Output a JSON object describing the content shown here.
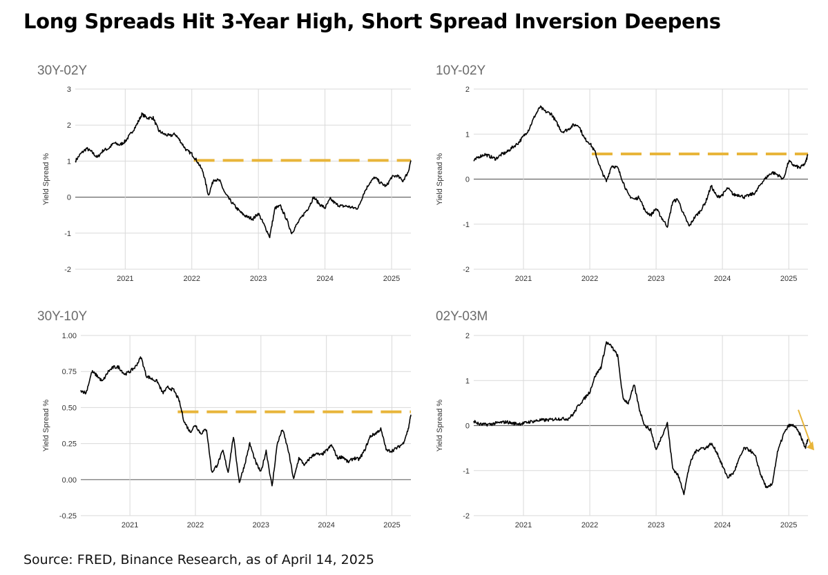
{
  "title": "Long Spreads Hit 3-Year High, Short Spread Inversion Deepens",
  "source": "Source: FRED, Binance Research, as of April 14, 2025",
  "colors": {
    "line": "#000000",
    "highlight": "#E8B53A",
    "grid": "#d9d9d9",
    "zero": "#666666"
  },
  "chart_data": [
    {
      "id": "30y-02y",
      "type": "line",
      "title": "30Y-02Y",
      "ylabel": "Yield Spread %",
      "xlabel": "",
      "ylim": [
        -2,
        3
      ],
      "yticks": [
        "3",
        "2",
        "1",
        "0",
        "-1",
        "-2"
      ],
      "ytick_values": [
        3,
        2,
        1,
        0,
        -1,
        -2
      ],
      "xlim": [
        2020.25,
        2025.29
      ],
      "xticks": [
        "2021",
        "2022",
        "2023",
        "2024",
        "2025"
      ],
      "xtick_values": [
        2021,
        2022,
        2023,
        2024,
        2025
      ],
      "grid": true,
      "reference_line": {
        "value": 1.02,
        "from": 2022.03,
        "to": 2025.29,
        "style": "dashed"
      },
      "x": [
        2020.25,
        2020.33,
        2020.42,
        2020.5,
        2020.58,
        2020.67,
        2020.75,
        2020.83,
        2020.92,
        2021.0,
        2021.08,
        2021.17,
        2021.25,
        2021.33,
        2021.42,
        2021.5,
        2021.58,
        2021.67,
        2021.75,
        2021.83,
        2021.92,
        2022.0,
        2022.08,
        2022.17,
        2022.25,
        2022.33,
        2022.42,
        2022.5,
        2022.58,
        2022.67,
        2022.75,
        2022.83,
        2022.92,
        2023.0,
        2023.08,
        2023.17,
        2023.25,
        2023.33,
        2023.42,
        2023.5,
        2023.58,
        2023.67,
        2023.75,
        2023.83,
        2023.92,
        2024.0,
        2024.08,
        2024.17,
        2024.25,
        2024.33,
        2024.42,
        2024.5,
        2024.58,
        2024.67,
        2024.75,
        2024.83,
        2024.92,
        2025.0,
        2025.08,
        2025.17,
        2025.25,
        2025.29
      ],
      "values": [
        1.0,
        1.2,
        1.35,
        1.25,
        1.1,
        1.3,
        1.35,
        1.5,
        1.45,
        1.55,
        1.75,
        2.0,
        2.3,
        2.2,
        2.2,
        1.85,
        1.75,
        1.7,
        1.75,
        1.55,
        1.3,
        1.2,
        1.0,
        0.7,
        0.05,
        0.5,
        0.45,
        0.1,
        -0.1,
        -0.3,
        -0.45,
        -0.55,
        -0.6,
        -0.45,
        -0.75,
        -1.1,
        -0.3,
        -0.25,
        -0.6,
        -1.0,
        -0.75,
        -0.5,
        -0.3,
        0.0,
        -0.2,
        -0.3,
        -0.05,
        -0.2,
        -0.25,
        -0.25,
        -0.3,
        -0.3,
        0.1,
        0.4,
        0.55,
        0.4,
        0.3,
        0.55,
        0.6,
        0.45,
        0.7,
        1.02
      ]
    },
    {
      "id": "10y-02y",
      "type": "line",
      "title": "10Y-02Y",
      "ylabel": "Yield Spread %",
      "xlabel": "",
      "ylim": [
        -2,
        2
      ],
      "yticks": [
        "2",
        "1",
        "0",
        "-1",
        "-2"
      ],
      "ytick_values": [
        2,
        1,
        0,
        -1,
        -2
      ],
      "xlim": [
        2020.25,
        2025.29
      ],
      "xticks": [
        "2021",
        "2022",
        "2023",
        "2024",
        "2025"
      ],
      "xtick_values": [
        2021,
        2022,
        2023,
        2024,
        2025
      ],
      "grid": true,
      "reference_line": {
        "value": 0.56,
        "from": 2022.03,
        "to": 2025.29,
        "style": "dashed"
      },
      "x": [
        2020.25,
        2020.33,
        2020.42,
        2020.5,
        2020.58,
        2020.67,
        2020.75,
        2020.83,
        2020.92,
        2021.0,
        2021.08,
        2021.17,
        2021.25,
        2021.33,
        2021.42,
        2021.5,
        2021.58,
        2021.67,
        2021.75,
        2021.83,
        2021.92,
        2022.0,
        2022.08,
        2022.17,
        2022.25,
        2022.33,
        2022.42,
        2022.5,
        2022.58,
        2022.67,
        2022.75,
        2022.83,
        2022.92,
        2023.0,
        2023.08,
        2023.17,
        2023.25,
        2023.33,
        2023.42,
        2023.5,
        2023.58,
        2023.67,
        2023.75,
        2023.83,
        2023.92,
        2024.0,
        2024.08,
        2024.17,
        2024.25,
        2024.33,
        2024.42,
        2024.5,
        2024.58,
        2024.67,
        2024.75,
        2024.83,
        2024.92,
        2025.0,
        2025.08,
        2025.17,
        2025.25,
        2025.29
      ],
      "values": [
        0.4,
        0.5,
        0.55,
        0.5,
        0.45,
        0.55,
        0.6,
        0.7,
        0.8,
        0.95,
        1.1,
        1.4,
        1.6,
        1.5,
        1.45,
        1.25,
        1.05,
        1.1,
        1.2,
        1.2,
        0.9,
        0.8,
        0.6,
        0.2,
        -0.05,
        0.3,
        0.25,
        -0.05,
        -0.35,
        -0.45,
        -0.4,
        -0.7,
        -0.8,
        -0.65,
        -0.85,
        -1.05,
        -0.5,
        -0.45,
        -0.8,
        -1.05,
        -0.85,
        -0.7,
        -0.5,
        -0.15,
        -0.4,
        -0.35,
        -0.2,
        -0.35,
        -0.35,
        -0.4,
        -0.35,
        -0.3,
        -0.1,
        0.05,
        0.15,
        0.1,
        0.0,
        0.4,
        0.3,
        0.25,
        0.35,
        0.55
      ]
    },
    {
      "id": "30y-10y",
      "type": "line",
      "title": "30Y-10Y",
      "ylabel": "Yield Spread %",
      "xlabel": "",
      "ylim": [
        -0.25,
        1.0
      ],
      "yticks": [
        "1.00",
        "0.75",
        "0.50",
        "0.25",
        "0.00",
        "-0.25"
      ],
      "ytick_values": [
        1.0,
        0.75,
        0.5,
        0.25,
        0.0,
        -0.25
      ],
      "xlim": [
        2020.25,
        2025.29
      ],
      "xticks": [
        "2021",
        "2022",
        "2023",
        "2024",
        "2025"
      ],
      "xtick_values": [
        2021,
        2022,
        2023,
        2024,
        2025
      ],
      "grid": true,
      "reference_line": {
        "value": 0.47,
        "from": 2021.73,
        "to": 2025.29,
        "style": "dashed"
      },
      "x": [
        2020.25,
        2020.33,
        2020.42,
        2020.5,
        2020.58,
        2020.67,
        2020.75,
        2020.83,
        2020.92,
        2021.0,
        2021.08,
        2021.17,
        2021.25,
        2021.33,
        2021.42,
        2021.5,
        2021.58,
        2021.67,
        2021.75,
        2021.83,
        2021.92,
        2022.0,
        2022.08,
        2022.17,
        2022.25,
        2022.33,
        2022.42,
        2022.5,
        2022.58,
        2022.67,
        2022.75,
        2022.83,
        2022.92,
        2023.0,
        2023.08,
        2023.17,
        2023.25,
        2023.33,
        2023.42,
        2023.5,
        2023.58,
        2023.67,
        2023.75,
        2023.83,
        2023.92,
        2024.0,
        2024.08,
        2024.17,
        2024.25,
        2024.33,
        2024.42,
        2024.5,
        2024.58,
        2024.67,
        2024.75,
        2024.83,
        2024.92,
        2025.0,
        2025.08,
        2025.17,
        2025.25,
        2025.29
      ],
      "values": [
        0.62,
        0.6,
        0.75,
        0.72,
        0.68,
        0.75,
        0.78,
        0.78,
        0.73,
        0.75,
        0.78,
        0.85,
        0.72,
        0.7,
        0.68,
        0.6,
        0.64,
        0.62,
        0.55,
        0.4,
        0.33,
        0.38,
        0.32,
        0.35,
        0.05,
        0.1,
        0.2,
        0.05,
        0.3,
        -0.02,
        0.1,
        0.25,
        0.12,
        0.05,
        0.2,
        -0.05,
        0.25,
        0.35,
        0.2,
        0.0,
        0.15,
        0.1,
        0.15,
        0.18,
        0.17,
        0.2,
        0.24,
        0.15,
        0.16,
        0.12,
        0.15,
        0.14,
        0.2,
        0.3,
        0.32,
        0.35,
        0.2,
        0.2,
        0.22,
        0.25,
        0.35,
        0.45
      ]
    },
    {
      "id": "02y-03m",
      "type": "line",
      "title": "02Y-03M",
      "ylabel": "Yield Spread %",
      "xlabel": "",
      "ylim": [
        -2,
        2
      ],
      "yticks": [
        "2",
        "1",
        "0",
        "-1",
        "-2"
      ],
      "ytick_values": [
        2,
        1,
        0,
        -1,
        -2
      ],
      "xlim": [
        2020.25,
        2025.29
      ],
      "xticks": [
        "2021",
        "2022",
        "2023",
        "2024",
        "2025"
      ],
      "xtick_values": [
        2021,
        2022,
        2023,
        2024,
        2025
      ],
      "grid": true,
      "annotation": {
        "type": "arrow",
        "direction": "down-right",
        "near": 2025.2
      },
      "x": [
        2020.25,
        2020.33,
        2020.42,
        2020.5,
        2020.58,
        2020.67,
        2020.75,
        2020.83,
        2020.92,
        2021.0,
        2021.08,
        2021.17,
        2021.25,
        2021.33,
        2021.42,
        2021.5,
        2021.58,
        2021.67,
        2021.75,
        2021.83,
        2021.92,
        2022.0,
        2022.08,
        2022.17,
        2022.25,
        2022.33,
        2022.42,
        2022.5,
        2022.58,
        2022.67,
        2022.75,
        2022.83,
        2022.92,
        2023.0,
        2023.08,
        2023.17,
        2023.25,
        2023.33,
        2023.42,
        2023.5,
        2023.58,
        2023.67,
        2023.75,
        2023.83,
        2023.92,
        2024.0,
        2024.08,
        2024.17,
        2024.25,
        2024.33,
        2024.42,
        2024.5,
        2024.58,
        2024.67,
        2024.75,
        2024.83,
        2024.92,
        2025.0,
        2025.08,
        2025.17,
        2025.25,
        2025.29
      ],
      "values": [
        0.1,
        0.03,
        0.02,
        0.03,
        0.05,
        0.07,
        0.08,
        0.05,
        0.04,
        0.05,
        0.08,
        0.1,
        0.12,
        0.12,
        0.13,
        0.15,
        0.15,
        0.15,
        0.25,
        0.45,
        0.6,
        0.75,
        1.1,
        1.3,
        1.85,
        1.75,
        1.55,
        0.6,
        0.5,
        0.9,
        0.35,
        0.0,
        -0.1,
        -0.55,
        -0.25,
        0.05,
        -0.95,
        -1.1,
        -1.5,
        -0.9,
        -0.6,
        -0.5,
        -0.5,
        -0.4,
        -0.6,
        -0.9,
        -1.15,
        -1.05,
        -0.75,
        -0.5,
        -0.55,
        -0.7,
        -1.1,
        -1.4,
        -1.3,
        -0.6,
        -0.2,
        0.0,
        0.0,
        -0.2,
        -0.5,
        -0.3
      ]
    }
  ]
}
